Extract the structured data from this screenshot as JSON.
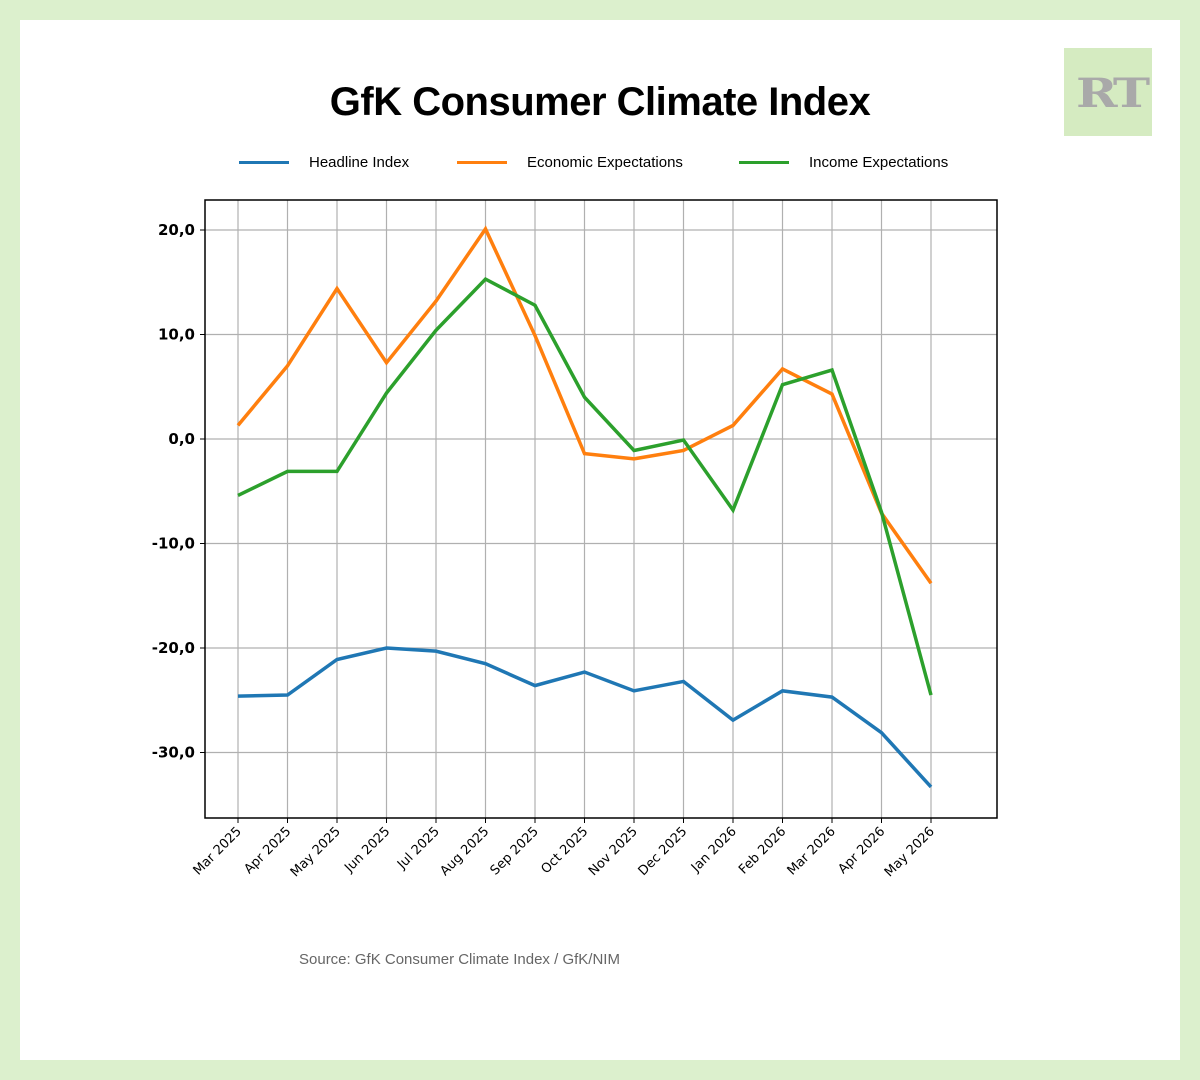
{
  "title": "GfK Consumer Climate Index",
  "logo_text": "RT",
  "source": "Source:  GfK Consumer Climate Index / GfK/NIM",
  "colors": {
    "background": "#dcf0cd",
    "logo_bg": "#d5ebc1",
    "logo_text": "#a9a9a9",
    "grid": "#b0b0b0"
  },
  "chart_data": {
    "type": "line",
    "title": "GfK Consumer Climate Index",
    "xlabel": "",
    "ylabel": "",
    "ylim": [
      -36,
      23
    ],
    "yticks": [
      20,
      10,
      0,
      -10,
      -20,
      -30
    ],
    "ytick_labels": [
      "20,0",
      "10,0",
      "0,0",
      "-10,0",
      "-20,0",
      "-30,0"
    ],
    "grid": true,
    "legend_position": "top-center",
    "categories": [
      "Mar 2025",
      "Apr 2025",
      "May 2025",
      "Jun 2025",
      "Jul 2025",
      "Aug 2025",
      "Sep 2025",
      "Oct 2025",
      "Nov 2025",
      "Dec 2025",
      "Jan 2026",
      "Feb 2026",
      "Mar 2026",
      "Apr 2026",
      "May 2026"
    ],
    "series": [
      {
        "name": "Headline Index",
        "color": "#1f77b4",
        "values": [
          -24.6,
          -24.5,
          -21.1,
          -20.0,
          -20.3,
          -21.5,
          -23.6,
          -22.3,
          -24.1,
          -23.2,
          -26.9,
          -24.1,
          -24.7,
          -28.1,
          -33.3
        ]
      },
      {
        "name": "Economic Expectations",
        "color": "#ff7f0e",
        "values": [
          1.3,
          7.0,
          14.4,
          7.3,
          13.2,
          20.1,
          9.9,
          -1.4,
          -1.9,
          -1.1,
          1.3,
          6.7,
          4.3,
          -7.1,
          -13.8
        ]
      },
      {
        "name": "Income Expectations",
        "color": "#2ca02c",
        "values": [
          -5.4,
          -3.1,
          -3.1,
          4.4,
          10.4,
          15.3,
          12.8,
          4.0,
          -1.1,
          -0.1,
          -6.8,
          5.2,
          6.6,
          -7.0,
          -24.5
        ]
      }
    ]
  }
}
